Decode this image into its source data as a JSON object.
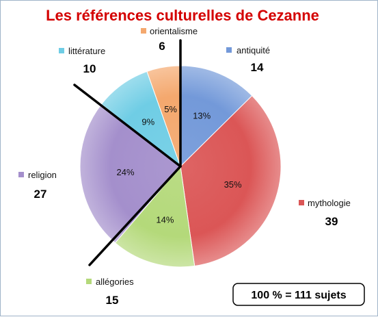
{
  "chart_data": {
    "type": "pie",
    "title": "Les références culturelles de Cezanne",
    "total_note": "100 % = 111 sujets",
    "slices": [
      {
        "name": "antiquité",
        "count": 14,
        "percent": 13,
        "percent_label": "13%",
        "color": "#7399d9"
      },
      {
        "name": "mythologie",
        "count": 39,
        "percent": 35,
        "percent_label": "35%",
        "color": "#db5656"
      },
      {
        "name": "allégories",
        "count": 15,
        "percent": 14,
        "percent_label": "14%",
        "color": "#b4d97a"
      },
      {
        "name": "religion",
        "count": 27,
        "percent": 24,
        "percent_label": "24%",
        "color": "#a48fcc"
      },
      {
        "name": "littérature",
        "count": 10,
        "percent": 9,
        "percent_label": "9%",
        "color": "#6fcde5"
      },
      {
        "name": "orientalisme",
        "count": 6,
        "percent": 5,
        "percent_label": "5%",
        "color": "#f4a86e"
      }
    ],
    "start": "12 o'clock",
    "direction": "clockwise"
  }
}
